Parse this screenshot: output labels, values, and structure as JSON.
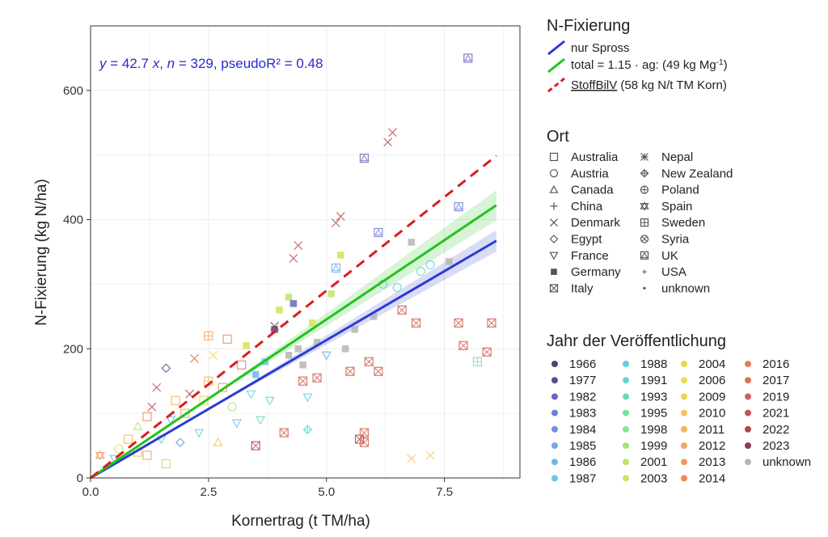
{
  "chart_data": {
    "type": "scatter",
    "xlabel": "Kornertrag (t TM/ha)",
    "ylabel": "N-Fixierung (kg N/ha)",
    "xlim": [
      0,
      9.1
    ],
    "ylim": [
      0,
      700
    ],
    "x_ticks": [
      0,
      2.5,
      5,
      7.5
    ],
    "x_tick_labels": [
      "0.0",
      "2.5",
      "5.0",
      "7.5"
    ],
    "y_ticks": [
      0,
      200,
      400,
      600
    ],
    "y_tick_labels": [
      "0",
      "200",
      "400",
      "600"
    ],
    "annotation": {
      "prefix": "y",
      "eq": " = 42.7 ",
      "var": "x",
      "sep": ", ",
      "n": "n",
      "rest": " = 329, pseudoR² =  0.48"
    },
    "lines": [
      {
        "name": "nur Spross",
        "slope": 42.7,
        "color": "#2b3bd1",
        "dash": false,
        "ci": 0.045
      },
      {
        "name": "total = 1.15 · ag: (49 kg Mg⁻¹)",
        "slope": 49.1,
        "color": "#22c41c",
        "dash": false,
        "ci": 0.055
      },
      {
        "name": "StoffBilV (58 kg N/t TM Korn)",
        "slope": 58,
        "color": "#d81e1e",
        "dash": true
      }
    ],
    "line_xmax": 8.6,
    "points": [
      {
        "x": 0.2,
        "y": 35,
        "marker": "spain",
        "group": "2013"
      },
      {
        "x": 0.5,
        "y": 30,
        "marker": "triangle-down",
        "group": "1986"
      },
      {
        "x": 0.6,
        "y": 45,
        "marker": "circle",
        "group": "2003"
      },
      {
        "x": 0.8,
        "y": 60,
        "marker": "square",
        "group": "2011"
      },
      {
        "x": 1.0,
        "y": 40,
        "marker": "square",
        "group": "2011"
      },
      {
        "x": 1.0,
        "y": 80,
        "marker": "triangle-up",
        "group": "2001"
      },
      {
        "x": 1.2,
        "y": 35,
        "marker": "square",
        "group": "2012"
      },
      {
        "x": 1.2,
        "y": 95,
        "marker": "square",
        "group": "2014"
      },
      {
        "x": 1.3,
        "y": 110,
        "marker": "x",
        "group": "2021"
      },
      {
        "x": 1.4,
        "y": 140,
        "marker": "x",
        "group": "2021"
      },
      {
        "x": 1.5,
        "y": 60,
        "marker": "triangle-down",
        "group": "1988"
      },
      {
        "x": 1.6,
        "y": 170,
        "marker": "diamond",
        "group": "1977"
      },
      {
        "x": 1.6,
        "y": 22,
        "marker": "square",
        "group": "2001"
      },
      {
        "x": 1.7,
        "y": 90,
        "marker": "triangle-down",
        "group": "1985"
      },
      {
        "x": 1.8,
        "y": 120,
        "marker": "square",
        "group": "2011"
      },
      {
        "x": 1.9,
        "y": 55,
        "marker": "diamond",
        "group": "1984"
      },
      {
        "x": 2.0,
        "y": 100,
        "marker": "square",
        "group": "2012"
      },
      {
        "x": 2.1,
        "y": 130,
        "marker": "x",
        "group": "2022"
      },
      {
        "x": 2.2,
        "y": 185,
        "marker": "x",
        "group": "2017"
      },
      {
        "x": 2.3,
        "y": 70,
        "marker": "triangle-down",
        "group": "1991"
      },
      {
        "x": 2.4,
        "y": 120,
        "marker": "square",
        "group": "2009"
      },
      {
        "x": 2.5,
        "y": 150,
        "marker": "sweden",
        "group": "2011"
      },
      {
        "x": 2.5,
        "y": 220,
        "marker": "sweden",
        "group": "2012"
      },
      {
        "x": 2.6,
        "y": 190,
        "marker": "x",
        "group": "2006"
      },
      {
        "x": 2.7,
        "y": 55,
        "marker": "triangle-up",
        "group": "2010"
      },
      {
        "x": 2.8,
        "y": 140,
        "marker": "square",
        "group": "2013"
      },
      {
        "x": 2.9,
        "y": 215,
        "marker": "square",
        "group": "2014"
      },
      {
        "x": 3.0,
        "y": 110,
        "marker": "circle",
        "group": "1999"
      },
      {
        "x": 3.1,
        "y": 85,
        "marker": "triangle-down",
        "group": "1987"
      },
      {
        "x": 3.2,
        "y": 175,
        "marker": "square",
        "group": "2016"
      },
      {
        "x": 3.3,
        "y": 205,
        "marker": "filled-square",
        "group": "2004"
      },
      {
        "x": 3.4,
        "y": 130,
        "marker": "triangle-down",
        "group": "1988"
      },
      {
        "x": 3.5,
        "y": 160,
        "marker": "filled-square",
        "group": "1986"
      },
      {
        "x": 3.5,
        "y": 50,
        "marker": "x-square",
        "group": "2022"
      },
      {
        "x": 3.6,
        "y": 90,
        "marker": "triangle-down",
        "group": "1993"
      },
      {
        "x": 3.7,
        "y": 180,
        "marker": "filled-square",
        "group": "1987"
      },
      {
        "x": 3.8,
        "y": 120,
        "marker": "triangle-down",
        "group": "1991"
      },
      {
        "x": 3.9,
        "y": 230,
        "marker": "filled-square",
        "group": "1966"
      },
      {
        "x": 3.9,
        "y": 235,
        "marker": "x",
        "group": "2023"
      },
      {
        "x": 4.0,
        "y": 260,
        "marker": "filled-square",
        "group": "2003"
      },
      {
        "x": 4.1,
        "y": 70,
        "marker": "x-square",
        "group": "2019"
      },
      {
        "x": 4.2,
        "y": 190,
        "marker": "filled-square",
        "group": "unknown"
      },
      {
        "x": 4.2,
        "y": 280,
        "marker": "filled-square",
        "group": "2001"
      },
      {
        "x": 4.3,
        "y": 270,
        "marker": "filled-square",
        "group": "1982"
      },
      {
        "x": 4.3,
        "y": 340,
        "marker": "x",
        "group": "2021"
      },
      {
        "x": 4.4,
        "y": 360,
        "marker": "x",
        "group": "2021"
      },
      {
        "x": 4.4,
        "y": 200,
        "marker": "filled-square",
        "group": "unknown"
      },
      {
        "x": 4.5,
        "y": 150,
        "marker": "x-square",
        "group": "2019"
      },
      {
        "x": 4.5,
        "y": 175,
        "marker": "filled-square",
        "group": "unknown"
      },
      {
        "x": 4.6,
        "y": 125,
        "marker": "triangle-down",
        "group": "1988"
      },
      {
        "x": 4.6,
        "y": 75,
        "marker": "nz",
        "group": "1991"
      },
      {
        "x": 4.7,
        "y": 240,
        "marker": "filled-square",
        "group": "2004"
      },
      {
        "x": 4.8,
        "y": 155,
        "marker": "x-square",
        "group": "2019"
      },
      {
        "x": 4.8,
        "y": 210,
        "marker": "filled-square",
        "group": "unknown"
      },
      {
        "x": 5.0,
        "y": 190,
        "marker": "triangle-down",
        "group": "1985"
      },
      {
        "x": 5.1,
        "y": 285,
        "marker": "filled-square",
        "group": "2001"
      },
      {
        "x": 5.2,
        "y": 325,
        "marker": "uk",
        "group": "1985"
      },
      {
        "x": 5.2,
        "y": 395,
        "marker": "x",
        "group": "2021"
      },
      {
        "x": 5.3,
        "y": 405,
        "marker": "x",
        "group": "2021"
      },
      {
        "x": 5.3,
        "y": 345,
        "marker": "filled-square",
        "group": "2003"
      },
      {
        "x": 5.4,
        "y": 200,
        "marker": "filled-square",
        "group": "unknown"
      },
      {
        "x": 5.5,
        "y": 165,
        "marker": "x-square",
        "group": "2019"
      },
      {
        "x": 5.6,
        "y": 230,
        "marker": "filled-square",
        "group": "unknown"
      },
      {
        "x": 5.7,
        "y": 60,
        "marker": "x-square",
        "group": "2022"
      },
      {
        "x": 5.8,
        "y": 495,
        "marker": "uk",
        "group": "1982"
      },
      {
        "x": 5.8,
        "y": 55,
        "marker": "x-square",
        "group": "2019"
      },
      {
        "x": 5.8,
        "y": 70,
        "marker": "x-square",
        "group": "2019"
      },
      {
        "x": 5.9,
        "y": 180,
        "marker": "x-square",
        "group": "2019"
      },
      {
        "x": 6.0,
        "y": 250,
        "marker": "filled-square",
        "group": "unknown"
      },
      {
        "x": 6.1,
        "y": 380,
        "marker": "uk",
        "group": "1983"
      },
      {
        "x": 6.1,
        "y": 165,
        "marker": "x-square",
        "group": "2019"
      },
      {
        "x": 6.2,
        "y": 300,
        "marker": "circle",
        "group": "1988"
      },
      {
        "x": 6.3,
        "y": 520,
        "marker": "x",
        "group": "2022"
      },
      {
        "x": 6.4,
        "y": 535,
        "marker": "x",
        "group": "2021"
      },
      {
        "x": 6.5,
        "y": 295,
        "marker": "circle",
        "group": "1991"
      },
      {
        "x": 6.6,
        "y": 260,
        "marker": "x-square",
        "group": "2019"
      },
      {
        "x": 6.8,
        "y": 365,
        "marker": "filled-square",
        "group": "unknown"
      },
      {
        "x": 6.9,
        "y": 240,
        "marker": "x-square",
        "group": "2019"
      },
      {
        "x": 7.0,
        "y": 320,
        "marker": "circle",
        "group": "1993"
      },
      {
        "x": 7.2,
        "y": 330,
        "marker": "circle",
        "group": "1991"
      },
      {
        "x": 7.6,
        "y": 335,
        "marker": "filled-square",
        "group": "unknown"
      },
      {
        "x": 7.8,
        "y": 420,
        "marker": "uk",
        "group": "1983"
      },
      {
        "x": 7.8,
        "y": 240,
        "marker": "x-square",
        "group": "2019"
      },
      {
        "x": 7.9,
        "y": 205,
        "marker": "x-square",
        "group": "2019"
      },
      {
        "x": 8.0,
        "y": 650,
        "marker": "uk",
        "group": "1982"
      },
      {
        "x": 8.4,
        "y": 195,
        "marker": "x-square",
        "group": "2019"
      },
      {
        "x": 8.5,
        "y": 240,
        "marker": "x-square",
        "group": "2019"
      },
      {
        "x": 8.2,
        "y": 180,
        "marker": "sweden",
        "group": "1995"
      },
      {
        "x": 6.8,
        "y": 30,
        "marker": "x",
        "group": "2010"
      },
      {
        "x": 7.2,
        "y": 35,
        "marker": "x",
        "group": "2009"
      }
    ]
  },
  "legend_fix": {
    "title": "N-Fixierung",
    "items": [
      {
        "label": "nur Spross",
        "color": "#2b3bd1",
        "dash": false
      },
      {
        "label_main": "total = 1.15 · ag: (49 kg Mg",
        "label_sup": "-1",
        "label_tail": ")",
        "color": "#22c41c",
        "dash": false
      },
      {
        "label_u": "StoffBilV",
        "label_rest": " (58 kg N/t TM Korn)",
        "color": "#d81e1e",
        "dash": true
      }
    ]
  },
  "legend_ort": {
    "title": "Ort",
    "col1": [
      {
        "label": "Australia",
        "marker": "square"
      },
      {
        "label": "Austria",
        "marker": "circle"
      },
      {
        "label": "Canada",
        "marker": "triangle-up"
      },
      {
        "label": "China",
        "marker": "plus"
      },
      {
        "label": "Denmark",
        "marker": "x"
      },
      {
        "label": "Egypt",
        "marker": "diamond"
      },
      {
        "label": "France",
        "marker": "triangle-down"
      },
      {
        "label": "Germany",
        "marker": "filled-square"
      },
      {
        "label": "Italy",
        "marker": "x-square"
      }
    ],
    "col2": [
      {
        "label": "Nepal",
        "marker": "asterisk"
      },
      {
        "label": "New Zealand",
        "marker": "nz"
      },
      {
        "label": "Poland",
        "marker": "plus-circle"
      },
      {
        "label": "Spain",
        "marker": "spain"
      },
      {
        "label": "Sweden",
        "marker": "sweden"
      },
      {
        "label": "Syria",
        "marker": "syria"
      },
      {
        "label": "UK",
        "marker": "uk"
      },
      {
        "label": "USA",
        "marker": "small-plus"
      },
      {
        "label": "unknown",
        "marker": "dot"
      }
    ]
  },
  "legend_jahr": {
    "title": "Jahr der Veröffentlichung",
    "col1": [
      {
        "label": "1966",
        "color": "#5a3f73"
      },
      {
        "label": "1977",
        "color": "#5c4c8e"
      },
      {
        "label": "1982",
        "color": "#6a68b8"
      },
      {
        "label": "1983",
        "color": "#6f7ed0"
      },
      {
        "label": "1984",
        "color": "#6f94dc"
      },
      {
        "label": "1985",
        "color": "#74a8e6"
      },
      {
        "label": "1986",
        "color": "#72b6ea"
      },
      {
        "label": "1987",
        "color": "#6fc4ea"
      }
    ],
    "col2": [
      {
        "label": "1988",
        "color": "#63cfe0"
      },
      {
        "label": "1991",
        "color": "#5ed8d0"
      },
      {
        "label": "1993",
        "color": "#66dcbc"
      },
      {
        "label": "1995",
        "color": "#78e0a4"
      },
      {
        "label": "1998",
        "color": "#8ce38e"
      },
      {
        "label": "1999",
        "color": "#a4e47c"
      },
      {
        "label": "2001",
        "color": "#bde468"
      },
      {
        "label": "2003",
        "color": "#cfe358"
      }
    ],
    "col3": [
      {
        "label": "2004",
        "color": "#dde04e"
      },
      {
        "label": "2006",
        "color": "#e8dc4e"
      },
      {
        "label": "2009",
        "color": "#f0cf52"
      },
      {
        "label": "2010",
        "color": "#f4c256"
      },
      {
        "label": "2011",
        "color": "#f5b55c"
      },
      {
        "label": "2012",
        "color": "#f3a860"
      },
      {
        "label": "2013",
        "color": "#f09a60"
      },
      {
        "label": "2014",
        "color": "#ec8b5c"
      }
    ],
    "col4": [
      {
        "label": "2016",
        "color": "#e57f5a"
      },
      {
        "label": "2017",
        "color": "#dc7258"
      },
      {
        "label": "2019",
        "color": "#cf6355"
      },
      {
        "label": "2021",
        "color": "#bf5552"
      },
      {
        "label": "2022",
        "color": "#aa494f"
      },
      {
        "label": "2023",
        "color": "#8f3e48"
      },
      {
        "label": "unknown",
        "color": "#b5b5b5"
      }
    ]
  }
}
